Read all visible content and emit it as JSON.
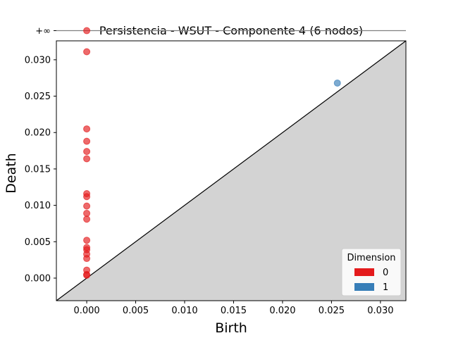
{
  "chart_data": {
    "type": "scatter",
    "title": "Persistencia - WSUT - Componente 4 (6 nodos)",
    "xlabel": "Birth",
    "ylabel": "Death",
    "xlim": [
      -0.0031,
      0.0326
    ],
    "ylim": [
      -0.0031,
      0.0326
    ],
    "xticks": [
      0.0,
      0.005,
      0.01,
      0.015,
      0.02,
      0.025,
      0.03
    ],
    "xtick_labels": [
      "0.000",
      "0.005",
      "0.010",
      "0.015",
      "0.020",
      "0.025",
      "0.030"
    ],
    "yticks": [
      0.0,
      0.005,
      0.01,
      0.015,
      0.02,
      0.025,
      0.03
    ],
    "ytick_labels": [
      "0.000",
      "0.005",
      "0.010",
      "0.015",
      "0.020",
      "0.025",
      "0.030"
    ],
    "infinity_label": "+∞",
    "infinity_value": 0.034,
    "grid": false,
    "legend_position": "bottom-right",
    "legend_title": "Dimension",
    "series": [
      {
        "name": "0",
        "color": "#e41a1c",
        "points": [
          [
            0,
            0.0004
          ],
          [
            0,
            0.0005
          ],
          [
            0,
            0.0011
          ],
          [
            0,
            0.0027
          ],
          [
            0,
            0.0033
          ],
          [
            0,
            0.0039
          ],
          [
            0,
            0.0042
          ],
          [
            0,
            0.0052
          ],
          [
            0,
            0.0081
          ],
          [
            0,
            0.0089
          ],
          [
            0,
            0.0099
          ],
          [
            0,
            0.0112
          ],
          [
            0,
            0.0116
          ],
          [
            0,
            0.0164
          ],
          [
            0,
            0.0174
          ],
          [
            0,
            0.0188
          ],
          [
            0,
            0.0205
          ],
          [
            0,
            0.0311
          ],
          [
            0,
            "inf"
          ]
        ]
      },
      {
        "name": "1",
        "color": "#377eb8",
        "points": [
          [
            0.0256,
            0.0268
          ]
        ]
      }
    ]
  }
}
